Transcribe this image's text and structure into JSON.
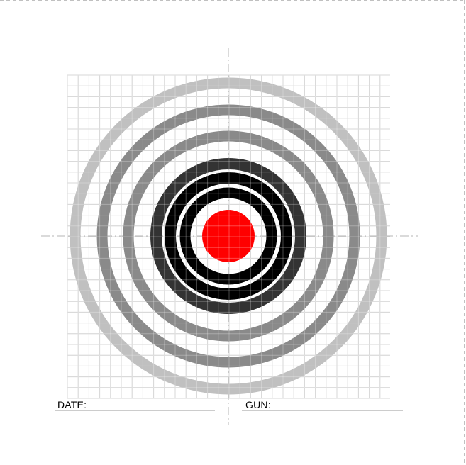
{
  "colors": {
    "background": "#ffffff",
    "grid_line": "#c8c8c8",
    "ring_outer": "#c0c0c0",
    "ring_mid": "#8a8a8a",
    "ring_dark": "#333333",
    "ring_inner": "#000000",
    "bullseye": "#ff0000",
    "crosshair": "#b4b4b4",
    "border_dash": "#808080",
    "underline": "#9a9a9a"
  },
  "target": {
    "rings": [
      {
        "name": "ring-outer-light",
        "color": "#c0c0c0"
      },
      {
        "name": "ring-second-gray",
        "color": "#8a8a8a"
      },
      {
        "name": "ring-third-gray",
        "color": "#8a8a8a"
      },
      {
        "name": "ring-fourth-dark",
        "color": "#333333"
      },
      {
        "name": "ring-fifth-black",
        "color": "#000000"
      },
      {
        "name": "ring-sixth-black",
        "color": "#000000"
      }
    ],
    "bullseye_color": "#ff0000"
  },
  "fields": {
    "date_label": "DATE:",
    "gun_label": "GUN:"
  }
}
